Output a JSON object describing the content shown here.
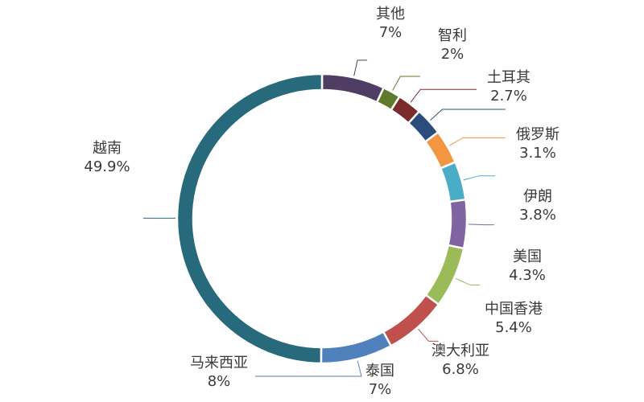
{
  "chart_data": {
    "type": "donut",
    "categories": [
      "其他",
      "智利",
      "土耳其",
      "俄罗斯",
      "伊朗",
      "美国",
      "中国香港",
      "澳大利亚",
      "泰国",
      "马来西亚",
      "越南"
    ],
    "values": [
      7,
      2,
      2.7,
      3.1,
      3.8,
      4.3,
      5.4,
      6.8,
      7,
      8,
      49.9
    ],
    "value_labels": [
      "7%",
      "2%",
      "2.7%",
      "3.1%",
      "3.8%",
      "4.3%",
      "5.4%",
      "6.8%",
      "7%",
      "8%",
      "49.9%"
    ],
    "colors": [
      "#4f3d63",
      "#5f7a2d",
      "#7a2b2b",
      "#2b4c7c",
      "#f29642",
      "#4bacc6",
      "#8064a2",
      "#9bbb59",
      "#c0504d",
      "#4f81bd",
      "#276a7c"
    ]
  }
}
